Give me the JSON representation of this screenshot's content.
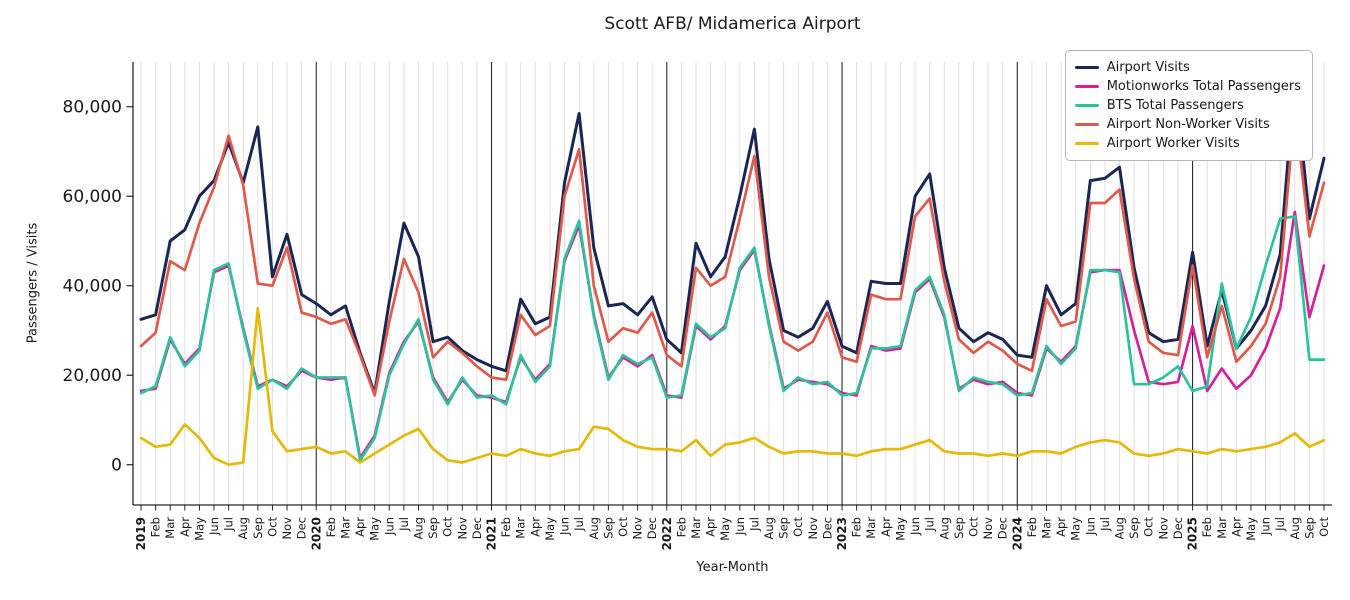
{
  "chart_data": {
    "type": "line",
    "title": "Scott AFB/ Midamerica Airport",
    "xlabel": "Year-Month",
    "ylabel": "Passengers / Visits",
    "ylim": [
      -9000,
      90000
    ],
    "y_tick_values": [
      0,
      20000,
      40000,
      60000,
      80000
    ],
    "y_tick_labels": [
      "0",
      "20,000",
      "40,000",
      "60,000",
      "80,000"
    ],
    "grid": "vertical monthly gridlines, dark vertical lines at each January",
    "legend_position": "upper right",
    "year_label_indices": [
      0,
      12,
      24,
      36,
      48,
      60,
      72
    ],
    "x_labels": [
      "2019",
      "Feb",
      "Mar",
      "Apr",
      "May",
      "Jun",
      "Jul",
      "Aug",
      "Sep",
      "Oct",
      "Nov",
      "Dec",
      "2020",
      "Feb",
      "Mar",
      "Apr",
      "May",
      "Jun",
      "Jul",
      "Aug",
      "Sep",
      "Oct",
      "Nov",
      "Dec",
      "2021",
      "Feb",
      "Mar",
      "Apr",
      "May",
      "Jun",
      "Jul",
      "Aug",
      "Sep",
      "Oct",
      "Nov",
      "Dec",
      "2022",
      "Feb",
      "Mar",
      "Apr",
      "May",
      "Jun",
      "Jul",
      "Aug",
      "Sep",
      "Oct",
      "Nov",
      "Dec",
      "2023",
      "Feb",
      "Mar",
      "Apr",
      "May",
      "Jun",
      "Jul",
      "Aug",
      "Sep",
      "Oct",
      "Nov",
      "Dec",
      "2024",
      "Feb",
      "Mar",
      "Apr",
      "May",
      "Jun",
      "Jul",
      "Aug",
      "Sep",
      "Oct",
      "Nov",
      "Dec",
      "2025",
      "Feb",
      "Mar",
      "Apr",
      "May",
      "Jun",
      "Jul",
      "Aug",
      "Sep",
      "Oct"
    ],
    "series": [
      {
        "name": "Airport Visits",
        "color": "#1b2655",
        "values": [
          32500,
          33500,
          50000,
          52500,
          60000,
          63500,
          72000,
          63000,
          75500,
          42000,
          51500,
          38000,
          36000,
          33500,
          35500,
          25000,
          16000,
          36500,
          54000,
          46500,
          27500,
          28500,
          25500,
          23500,
          22000,
          21000,
          37000,
          31500,
          33000,
          63000,
          78500,
          48500,
          35500,
          36000,
          33500,
          37500,
          28000,
          25000,
          49500,
          42000,
          46500,
          60000,
          75000,
          46000,
          30000,
          28500,
          30500,
          36500,
          26500,
          25000,
          41000,
          40500,
          40500,
          60000,
          65000,
          44000,
          30500,
          27500,
          29500,
          28000,
          24500,
          24000,
          40000,
          33500,
          36000,
          63500,
          64000,
          66500,
          44000,
          29500,
          27500,
          28000,
          47500,
          26500,
          39000,
          26000,
          30000,
          35500,
          47000,
          86500,
          55000,
          68500
        ]
      },
      {
        "name": "Motionworks Total Passengers",
        "color": "#d4219c",
        "values": [
          16500,
          17000,
          28000,
          22500,
          26000,
          43000,
          44500,
          30500,
          17500,
          19000,
          17500,
          21000,
          19500,
          19000,
          19500,
          1500,
          6500,
          20500,
          27500,
          32000,
          19500,
          14000,
          19000,
          15500,
          15000,
          14000,
          24000,
          19000,
          22500,
          45500,
          53500,
          33500,
          19500,
          24000,
          22000,
          24500,
          15500,
          15000,
          31000,
          28000,
          31000,
          43500,
          48000,
          31500,
          17000,
          19000,
          18500,
          18000,
          16000,
          15500,
          26500,
          25500,
          26000,
          38500,
          41500,
          33000,
          17000,
          19000,
          18000,
          18500,
          16000,
          15500,
          26000,
          23000,
          26500,
          43000,
          43500,
          43500,
          30000,
          18500,
          18000,
          18500,
          31000,
          16500,
          21500,
          17000,
          20000,
          26000,
          35000,
          56500,
          33000,
          44500
        ]
      },
      {
        "name": "BTS Total Passengers",
        "color": "#2cc39c",
        "values": [
          16000,
          17500,
          28500,
          22000,
          25500,
          43500,
          45000,
          30000,
          17000,
          19000,
          17000,
          21500,
          19500,
          19500,
          19500,
          1000,
          6000,
          20000,
          27000,
          32500,
          19000,
          13500,
          19500,
          15000,
          15500,
          13500,
          24500,
          18500,
          22000,
          46000,
          54500,
          33000,
          19000,
          24500,
          22500,
          24000,
          15000,
          15500,
          31500,
          28500,
          30500,
          44000,
          48500,
          31000,
          16500,
          19500,
          18000,
          18500,
          15500,
          16000,
          26000,
          26000,
          26500,
          39000,
          42000,
          33500,
          16500,
          19500,
          18500,
          18000,
          15500,
          16000,
          26500,
          22500,
          26000,
          43500,
          43500,
          43000,
          18000,
          18000,
          19500,
          22000,
          16500,
          17500,
          40500,
          26000,
          33000,
          44500,
          55000,
          55500,
          23500,
          23500
        ]
      },
      {
        "name": "Airport Non-Worker Visits",
        "color": "#df5a4b",
        "values": [
          26500,
          29500,
          45500,
          43500,
          54000,
          62000,
          73500,
          62500,
          40500,
          40000,
          48500,
          34000,
          33000,
          31500,
          32500,
          24500,
          15500,
          32000,
          46000,
          38500,
          24000,
          27500,
          25000,
          22000,
          19500,
          19000,
          33500,
          29000,
          31000,
          60000,
          70500,
          40000,
          27500,
          30500,
          29500,
          34000,
          24500,
          22000,
          44000,
          40000,
          42000,
          55000,
          69000,
          42000,
          27500,
          25500,
          27500,
          34000,
          24000,
          23000,
          38000,
          37000,
          37000,
          55500,
          59500,
          41000,
          28000,
          25000,
          27500,
          25500,
          22500,
          21000,
          37000,
          31000,
          32000,
          58500,
          58500,
          61500,
          41500,
          27500,
          25000,
          24500,
          44500,
          24000,
          35500,
          23000,
          26500,
          31500,
          42000,
          79500,
          51000,
          63000
        ]
      },
      {
        "name": "Airport Worker Visits",
        "color": "#e5b907",
        "values": [
          6000,
          4000,
          4500,
          9000,
          6000,
          1500,
          0,
          500,
          35000,
          7500,
          3000,
          3500,
          4000,
          2500,
          3000,
          500,
          2500,
          4500,
          6500,
          8000,
          3500,
          1000,
          500,
          1500,
          2500,
          2000,
          3500,
          2500,
          2000,
          3000,
          3500,
          8500,
          8000,
          5500,
          4000,
          3500,
          3500,
          3000,
          5500,
          2000,
          4500,
          5000,
          6000,
          4000,
          2500,
          3000,
          3000,
          2500,
          2500,
          2000,
          3000,
          3500,
          3500,
          4500,
          5500,
          3000,
          2500,
          2500,
          2000,
          2500,
          2000,
          3000,
          3000,
          2500,
          4000,
          5000,
          5500,
          5000,
          2500,
          2000,
          2500,
          3500,
          3000,
          2500,
          3500,
          3000,
          3500,
          4000,
          5000,
          7000,
          4000,
          5500
        ]
      }
    ]
  }
}
